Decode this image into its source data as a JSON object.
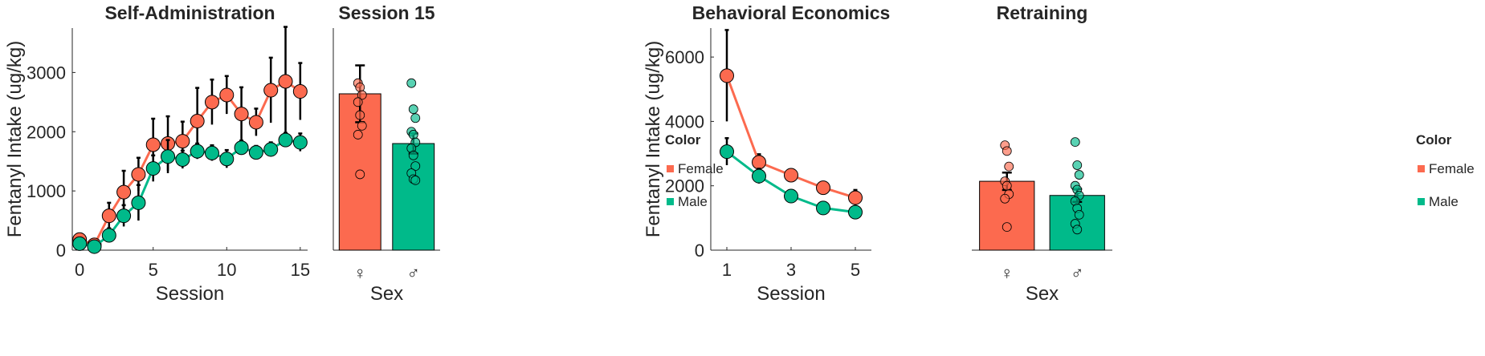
{
  "chart_data": [
    {
      "type": "line",
      "title": "Self-Administration",
      "xlabel": "Session",
      "ylabel": "Fentanyl Intake (ug/kg)",
      "xlim": [
        -0.5,
        15.5
      ],
      "ylim": [
        0,
        3750
      ],
      "xticks": [
        0,
        5,
        10,
        15
      ],
      "yticks": [
        0,
        1000,
        2000,
        3000
      ],
      "grid": false,
      "series": [
        {
          "name": "Female",
          "color": "#FC6A4F",
          "x": [
            0,
            1,
            2,
            3,
            4,
            5,
            6,
            7,
            8,
            9,
            10,
            11,
            12,
            13,
            14,
            15
          ],
          "values": [
            180,
            90,
            580,
            980,
            1280,
            1780,
            1800,
            1840,
            2180,
            2500,
            2620,
            2300,
            2160,
            2700,
            2850,
            2680
          ],
          "err": [
            40,
            40,
            220,
            360,
            280,
            440,
            460,
            330,
            560,
            380,
            320,
            450,
            230,
            550,
            920,
            480
          ]
        },
        {
          "name": "Male",
          "color": "#00BA8A",
          "x": [
            0,
            1,
            2,
            3,
            4,
            5,
            6,
            7,
            8,
            9,
            10,
            11,
            12,
            13,
            14,
            15
          ],
          "values": [
            110,
            60,
            250,
            580,
            800,
            1380,
            1580,
            1530,
            1670,
            1640,
            1540,
            1730,
            1650,
            1700,
            1860,
            1820
          ],
          "err": [
            30,
            30,
            120,
            180,
            300,
            220,
            280,
            150,
            130,
            130,
            150,
            120,
            110,
            120,
            120,
            150
          ]
        }
      ]
    },
    {
      "type": "bar",
      "title": "Session 15",
      "xlabel": "Sex",
      "categories": [
        "♀",
        "♂"
      ],
      "ylim": [
        0,
        3750
      ],
      "values": [
        2640,
        1800
      ],
      "err": [
        480,
        170
      ],
      "colors": [
        "#FC6A4F",
        "#00BA8A"
      ],
      "points": [
        [
          2820,
          2750,
          2620,
          2500,
          2280,
          2100,
          1950,
          1280
        ],
        [
          2820,
          2380,
          2230,
          2000,
          1950,
          1820,
          1720,
          1600,
          1420,
          1300,
          1200,
          1180
        ]
      ]
    },
    {
      "type": "line",
      "title": "Behavioral Economics",
      "xlabel": "Session",
      "ylabel": "Fentanyl Intake (ug/kg)",
      "xlim": [
        0.5,
        5.5
      ],
      "ylim": [
        0,
        6900
      ],
      "xticks": [
        1,
        3,
        5
      ],
      "yticks": [
        0,
        2000,
        4000,
        6000
      ],
      "grid": false,
      "series": [
        {
          "name": "Female",
          "color": "#FC6A4F",
          "x": [
            1,
            2,
            3,
            4,
            5
          ],
          "values": [
            5420,
            2730,
            2330,
            1940,
            1630
          ],
          "err": [
            1420,
            250,
            180,
            110,
            240
          ]
        },
        {
          "name": "Male",
          "color": "#00BA8A",
          "x": [
            1,
            2,
            3,
            4,
            5
          ],
          "values": [
            3060,
            2300,
            1680,
            1310,
            1180
          ],
          "err": [
            420,
            230,
            130,
            110,
            90
          ]
        }
      ]
    },
    {
      "type": "bar",
      "title": "Retraining",
      "xlabel": "Sex",
      "categories": [
        "♀",
        "♂"
      ],
      "ylim": [
        0,
        6900
      ],
      "values": [
        2140,
        1700
      ],
      "err": [
        270,
        200
      ],
      "colors": [
        "#FC6A4F",
        "#00BA8A"
      ],
      "points": [
        [
          3260,
          3080,
          2600,
          2140,
          2000,
          1740,
          1600,
          720
        ],
        [
          3360,
          2640,
          2340,
          2000,
          1880,
          1700,
          1520,
          1300,
          1100,
          820,
          640
        ]
      ]
    }
  ],
  "legends": [
    {
      "title": "Color",
      "entries": [
        {
          "label": "Female",
          "color": "#FC6A4F"
        },
        {
          "label": "Male",
          "color": "#00BA8A"
        }
      ]
    },
    {
      "title": "Color",
      "entries": [
        {
          "label": "Female",
          "color": "#FC6A4F"
        },
        {
          "label": "Male",
          "color": "#00BA8A"
        }
      ]
    }
  ]
}
